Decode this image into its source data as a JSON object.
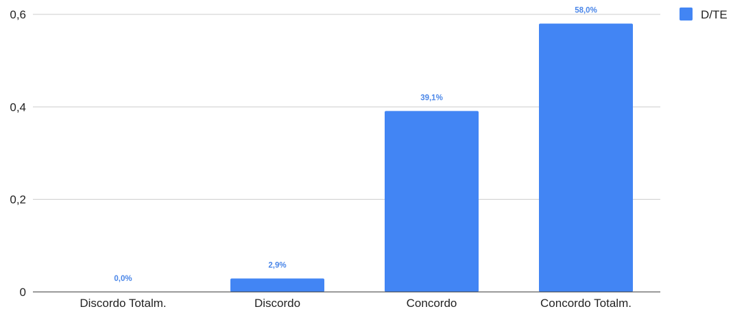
{
  "chart_data": {
    "type": "bar",
    "categories": [
      "Discordo Totalm.",
      "Discordo",
      "Concordo",
      "Concordo Totalm."
    ],
    "series": [
      {
        "name": "D/TE",
        "values": [
          0.0,
          0.029,
          0.391,
          0.58
        ],
        "data_labels": [
          "0,0%",
          "2,9%",
          "39,1%",
          "58,0%"
        ],
        "color": "#4285f4"
      }
    ],
    "y_ticks": [
      {
        "value": 0,
        "label": "0"
      },
      {
        "value": 0.2,
        "label": "0,2"
      },
      {
        "value": 0.4,
        "label": "0,4"
      },
      {
        "value": 0.6,
        "label": "0,6"
      }
    ],
    "ylim": [
      0,
      0.6
    ],
    "grid": "horizontal",
    "legend_position": "top-right",
    "title": "",
    "xlabel": "",
    "ylabel": ""
  },
  "colors": {
    "bar": "#4285f4",
    "data_label": "#4a86e8",
    "gridline": "#cccccc",
    "axis": "#333333"
  }
}
